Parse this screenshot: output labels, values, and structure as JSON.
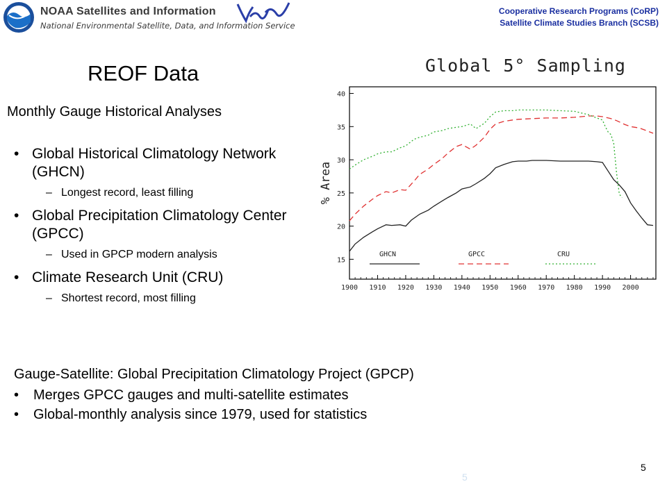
{
  "header": {
    "org_name": "NOAA Satellites and Information",
    "org_subtitle": "National Environmental Satellite, Data, and Information Service",
    "program_line1": "Cooperative Research Programs (CoRP)",
    "program_line2": "Satellite Climate Studies Branch (SCSB)"
  },
  "slide": {
    "title": "REOF Data",
    "subheading": "Monthly Gauge Historical Analyses",
    "bullets": [
      {
        "text": "Global Historical Climatology Network (GHCN)",
        "sub": "Longest record, least filling"
      },
      {
        "text": "Global Precipitation Climatology Center (GPCC)",
        "sub": "Used in GPCP modern analysis"
      },
      {
        "text": "Climate Research Unit (CRU)",
        "sub": "Shortest record, most filling"
      }
    ],
    "bottom_heading": "Gauge-Satellite: Global Precipitation Climatology Project (GPCP)",
    "bottom_bullets": [
      "Merges GPCC gauges and multi-satellite estimates",
      "Global-monthly analysis since 1979, used for statistics"
    ],
    "bullet_glyph": "•",
    "dash_glyph": "–",
    "page_number": "5",
    "ghost_number": "5"
  },
  "chart_data": {
    "type": "line",
    "title": "Global 5° Sampling",
    "ylabel": "% Area",
    "xlabel": "",
    "xlim": [
      1900,
      2009
    ],
    "ylim": [
      12,
      41
    ],
    "xticks": [
      1900,
      1910,
      1920,
      1930,
      1940,
      1950,
      1960,
      1970,
      1980,
      1990,
      2000
    ],
    "yticks": [
      15,
      20,
      25,
      30,
      35,
      40
    ],
    "legend_position": "bottom-inside",
    "series": [
      {
        "name": "GHCN",
        "color": "#222222",
        "dash": "solid",
        "x": [
          1900,
          1902,
          1905,
          1908,
          1910,
          1913,
          1915,
          1918,
          1920,
          1922,
          1925,
          1928,
          1930,
          1933,
          1935,
          1938,
          1940,
          1943,
          1945,
          1948,
          1950,
          1952,
          1955,
          1958,
          1960,
          1963,
          1965,
          1970,
          1975,
          1980,
          1985,
          1988,
          1990,
          1992,
          1994,
          1996,
          1998,
          2000,
          2002,
          2004,
          2006,
          2008
        ],
        "y": [
          16.2,
          17.3,
          18.3,
          19.1,
          19.6,
          20.2,
          20.1,
          20.2,
          20.0,
          20.9,
          21.8,
          22.4,
          23.0,
          23.8,
          24.3,
          25.0,
          25.6,
          25.9,
          26.4,
          27.2,
          27.9,
          28.8,
          29.3,
          29.7,
          29.8,
          29.8,
          29.9,
          29.9,
          29.8,
          29.8,
          29.8,
          29.7,
          29.6,
          28.3,
          27.0,
          26.2,
          25.2,
          23.5,
          22.3,
          21.2,
          20.2,
          20.1
        ]
      },
      {
        "name": "GPCC",
        "color": "#e03030",
        "dash": "8,5",
        "x": [
          1900,
          1902,
          1905,
          1908,
          1910,
          1913,
          1915,
          1918,
          1920,
          1923,
          1925,
          1928,
          1930,
          1933,
          1935,
          1938,
          1940,
          1943,
          1945,
          1948,
          1950,
          1952,
          1955,
          1958,
          1960,
          1965,
          1970,
          1975,
          1980,
          1985,
          1988,
          1990,
          1993,
          1995,
          1998,
          2000,
          2003,
          2005,
          2008
        ],
        "y": [
          20.8,
          21.8,
          23.0,
          24.0,
          24.6,
          25.2,
          25.0,
          25.5,
          25.4,
          26.8,
          27.8,
          28.6,
          29.3,
          30.2,
          31.0,
          32.0,
          32.3,
          31.6,
          32.2,
          33.4,
          34.6,
          35.4,
          35.8,
          36.0,
          36.1,
          36.2,
          36.3,
          36.3,
          36.4,
          36.6,
          36.6,
          36.5,
          36.2,
          35.9,
          35.3,
          35.0,
          34.8,
          34.5,
          34.0
        ]
      },
      {
        "name": "CRU",
        "color": "#30b030",
        "dash": "2,3",
        "x": [
          1900,
          1902,
          1905,
          1908,
          1910,
          1913,
          1915,
          1918,
          1920,
          1923,
          1925,
          1928,
          1930,
          1933,
          1935,
          1938,
          1940,
          1943,
          1945,
          1948,
          1950,
          1952,
          1955,
          1958,
          1960,
          1965,
          1970,
          1975,
          1980,
          1985,
          1988,
          1990,
          1991,
          1992,
          1993,
          1994,
          1995,
          1996,
          1997
        ],
        "y": [
          28.6,
          29.2,
          30.0,
          30.5,
          30.9,
          31.2,
          31.2,
          31.8,
          32.1,
          33.1,
          33.4,
          33.7,
          34.2,
          34.4,
          34.7,
          34.9,
          35.0,
          35.4,
          34.7,
          35.5,
          36.5,
          37.2,
          37.4,
          37.4,
          37.5,
          37.5,
          37.5,
          37.4,
          37.3,
          36.8,
          36.3,
          36.0,
          35.0,
          34.2,
          33.8,
          32.5,
          28.0,
          24.8,
          24.3
        ]
      }
    ]
  }
}
